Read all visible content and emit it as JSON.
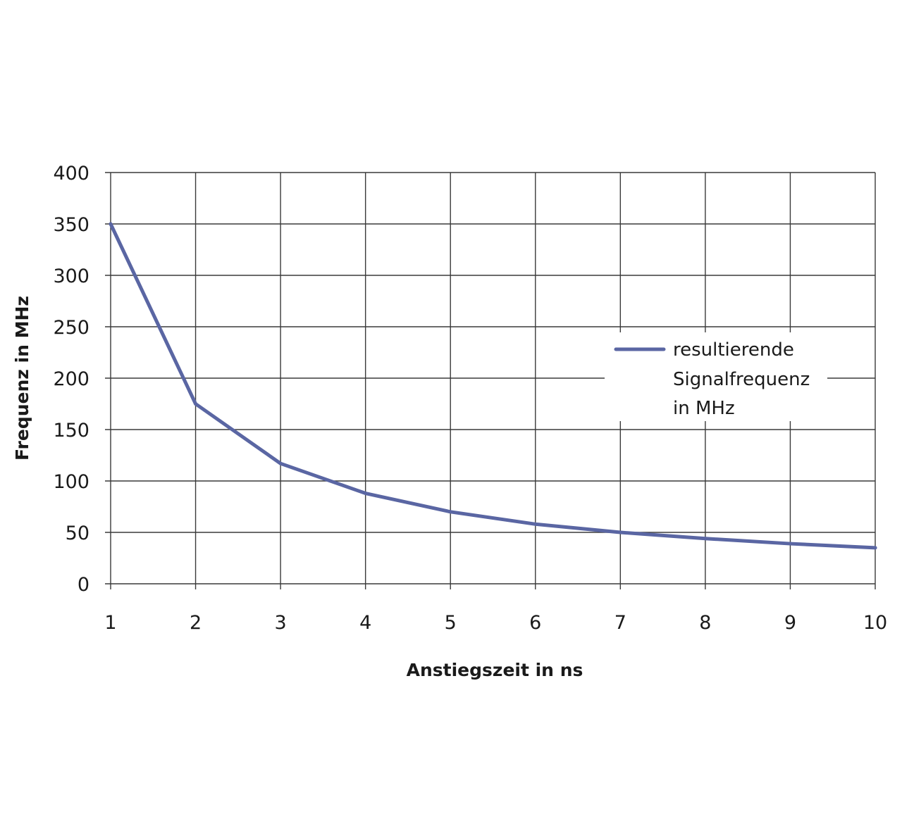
{
  "chart_data": {
    "type": "line",
    "title": "",
    "xlabel": "Anstiegszeit in ns",
    "ylabel": "Frequenz in MHz",
    "x": [
      1,
      2,
      3,
      4,
      5,
      6,
      7,
      8,
      9,
      10
    ],
    "xlim": [
      1,
      10
    ],
    "ylim": [
      0,
      400
    ],
    "x_ticks": [
      "1",
      "2",
      "3",
      "4",
      "5",
      "6",
      "7",
      "8",
      "9",
      "10"
    ],
    "y_ticks": [
      "0",
      "50",
      "100",
      "150",
      "200",
      "250",
      "300",
      "350",
      "400"
    ],
    "grid": true,
    "legend_position": "right",
    "series": [
      {
        "name": "resultierende Signalfrequenz in MHz",
        "color": "#5a66a3",
        "values": [
          350,
          175,
          117,
          88,
          70,
          58,
          50,
          44,
          39,
          35
        ]
      }
    ],
    "legend_lines": [
      "resultierende",
      "Signalfrequenz",
      "in MHz"
    ]
  }
}
